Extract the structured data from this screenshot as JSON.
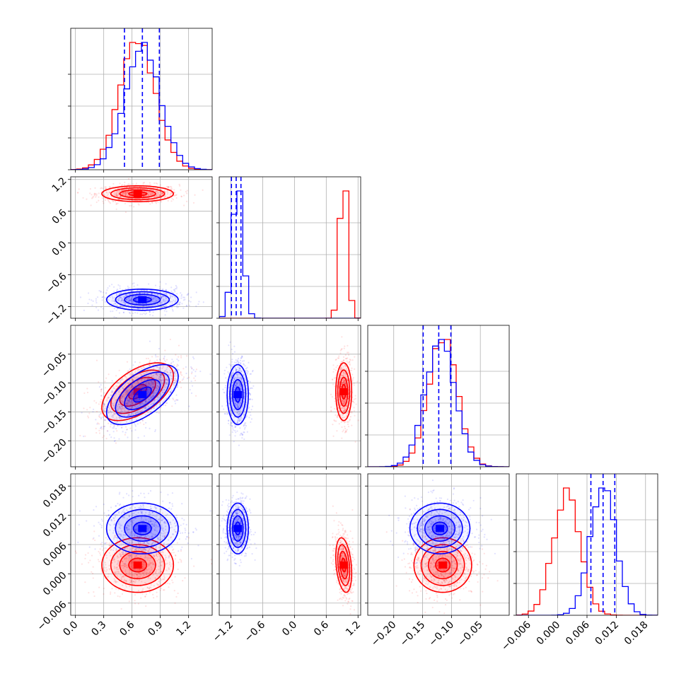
{
  "colors": {
    "series_a": "#ff0000",
    "series_b": "#0000ff",
    "grid": "#b0b0b0"
  },
  "chart_data": {
    "type": "corner",
    "grid": true,
    "series": [
      {
        "color": "#ff0000"
      },
      {
        "color": "#0000ff"
      }
    ],
    "parameters": [
      {
        "range": [
          -0.05,
          1.45
        ],
        "ticks": [
          0.0,
          0.3,
          0.6,
          0.9,
          1.2
        ],
        "tick_labels": [
          "0.0",
          "0.3",
          "0.6",
          "0.9",
          "1.2"
        ],
        "red": {
          "mean": 0.66,
          "sd": 0.19
        },
        "blue": {
          "mean": 0.71,
          "sd": 0.19
        },
        "quantiles": [
          0.52,
          0.71,
          0.89
        ],
        "hist_ymax": 1.2
      },
      {
        "range": [
          -1.42,
          1.25
        ],
        "ticks": [
          -1.2,
          -0.6,
          0.0,
          0.6,
          1.2
        ],
        "tick_labels": [
          "−1.2",
          "−0.6",
          "0.0",
          "0.6",
          "1.2"
        ],
        "red": {
          "mean": 0.93,
          "sd": 0.075
        },
        "blue": {
          "mean": -1.07,
          "sd": 0.1
        },
        "quantiles": [
          -1.19,
          -1.1,
          -1.01
        ],
        "hist_ymax": 1.2
      },
      {
        "range": [
          -0.245,
          0.0
        ],
        "ticks": [
          -0.2,
          -0.15,
          -0.1,
          -0.05
        ],
        "tick_labels": [
          "−0.20",
          "−0.15",
          "−0.10",
          "−0.05"
        ],
        "red": {
          "mean": -0.115,
          "sd": 0.025
        },
        "blue": {
          "mean": -0.12,
          "sd": 0.026
        },
        "quantiles": [
          -0.149,
          -0.122,
          -0.101
        ],
        "hist_ymax": 1.2
      },
      {
        "range": [
          -0.0085,
          0.0205
        ],
        "ticks": [
          -0.006,
          0.0,
          0.006,
          0.012,
          0.018
        ],
        "tick_labels": [
          "−0.006",
          "0.000",
          "0.006",
          "0.012",
          "0.018"
        ],
        "red": {
          "mean": 0.0018,
          "sd": 0.0028
        },
        "blue": {
          "mean": 0.0093,
          "sd": 0.0026
        },
        "quantiles": [
          0.0068,
          0.0093,
          0.0117
        ],
        "hist_ymax": 1.2
      }
    ],
    "correlations": {
      "1,0": {
        "red": 0.0,
        "blue": 0.0
      },
      "2,0": {
        "red": 0.55,
        "blue": 0.6
      },
      "2,1": {
        "red": 0.0,
        "blue": 0.0
      },
      "3,0": {
        "red": 0.0,
        "blue": 0.0
      },
      "3,1": {
        "red": -0.3,
        "blue": 0.0
      },
      "3,2": {
        "red": 0.0,
        "blue": 0.0
      }
    }
  }
}
